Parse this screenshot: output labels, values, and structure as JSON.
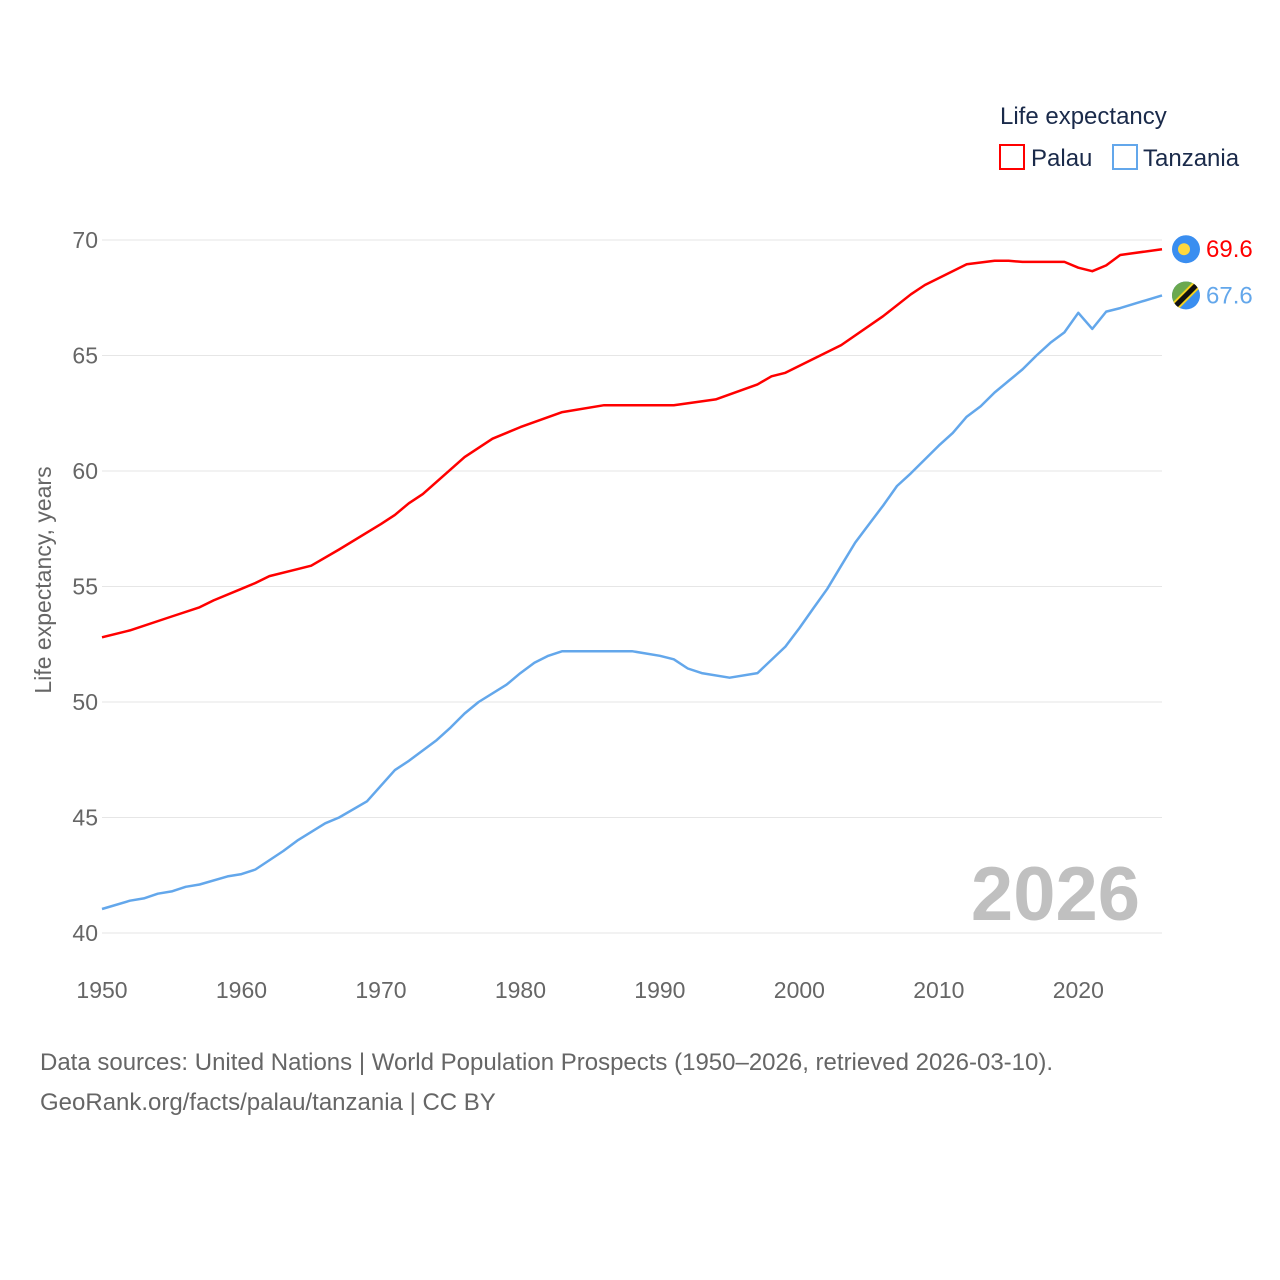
{
  "chart_data": {
    "type": "line",
    "title": "",
    "xlabel": "",
    "ylabel": "Life expectancy, years",
    "xlim": [
      1950,
      2026
    ],
    "ylim": [
      40,
      70
    ],
    "yticks": [
      40,
      45,
      50,
      55,
      60,
      65,
      70
    ],
    "xticks": [
      1950,
      1960,
      1970,
      1980,
      1990,
      2000,
      2010,
      2020
    ],
    "grid": true,
    "legend": {
      "title": "Life expectancy",
      "placement": "top-right"
    },
    "year_watermark": "2026",
    "series": [
      {
        "name": "Palau",
        "color": "#ff0000",
        "end_label": "69.6",
        "flag": "palau-flag",
        "x": [
          1950,
          1952,
          1955,
          1957,
          1958,
          1960,
          1961,
          1962,
          1964,
          1965,
          1967,
          1970,
          1971,
          1972,
          1973,
          1976,
          1978,
          1980,
          1983,
          1986,
          1991,
          1994,
          1997,
          1998,
          1999,
          2003,
          2006,
          2008,
          2009,
          2012,
          2014,
          2015,
          2016,
          2019,
          2020,
          2021,
          2022,
          2023,
          2026
        ],
        "y": [
          52.8,
          53.1,
          53.7,
          54.1,
          54.4,
          54.9,
          55.15,
          55.45,
          55.75,
          55.9,
          56.6,
          57.7,
          58.1,
          58.6,
          59.0,
          60.6,
          61.4,
          61.9,
          62.55,
          62.85,
          62.85,
          63.1,
          63.75,
          64.1,
          64.25,
          65.45,
          66.7,
          67.65,
          68.05,
          68.95,
          69.1,
          69.1,
          69.05,
          69.05,
          68.8,
          68.65,
          68.9,
          69.35,
          69.6
        ]
      },
      {
        "name": "Tanzania",
        "color": "#63a7eb",
        "end_label": "67.6",
        "flag": "tanzania-flag",
        "x": [
          1950,
          1952,
          1953,
          1954,
          1955,
          1956,
          1957,
          1959,
          1960,
          1961,
          1963,
          1964,
          1966,
          1967,
          1969,
          1971,
          1972,
          1974,
          1975,
          1976,
          1977,
          1979,
          1980,
          1981,
          1982,
          1983,
          1988,
          1990,
          1991,
          1992,
          1993,
          1995,
          1997,
          1999,
          2000,
          2001,
          2002,
          2003,
          2004,
          2005,
          2006,
          2007,
          2008,
          2009,
          2010,
          2011,
          2012,
          2013,
          2014,
          2015,
          2016,
          2017,
          2018,
          2019,
          2020,
          2021,
          2022,
          2023,
          2026
        ],
        "y": [
          41.04,
          41.4,
          41.5,
          41.7,
          41.8,
          42.0,
          42.1,
          42.45,
          42.55,
          42.75,
          43.55,
          44.0,
          44.75,
          45.0,
          45.7,
          47.05,
          47.45,
          48.35,
          48.9,
          49.5,
          50.0,
          50.75,
          51.25,
          51.7,
          52.0,
          52.2,
          52.2,
          52.0,
          51.85,
          51.45,
          51.25,
          51.05,
          51.25,
          52.4,
          53.2,
          54.05,
          54.9,
          55.9,
          56.9,
          57.7,
          58.5,
          59.35,
          59.9,
          60.5,
          61.1,
          61.65,
          62.35,
          62.8,
          63.4,
          63.9,
          64.4,
          65.0,
          65.55,
          66.0,
          66.85,
          66.15,
          66.9,
          67.05,
          67.6
        ]
      }
    ]
  },
  "footer": {
    "line1": "Data sources: United Nations | World Population Prospects (1950–2026, retrieved 2026-03-10).",
    "line2": "GeoRank.org/facts/palau/tanzania | CC BY"
  }
}
